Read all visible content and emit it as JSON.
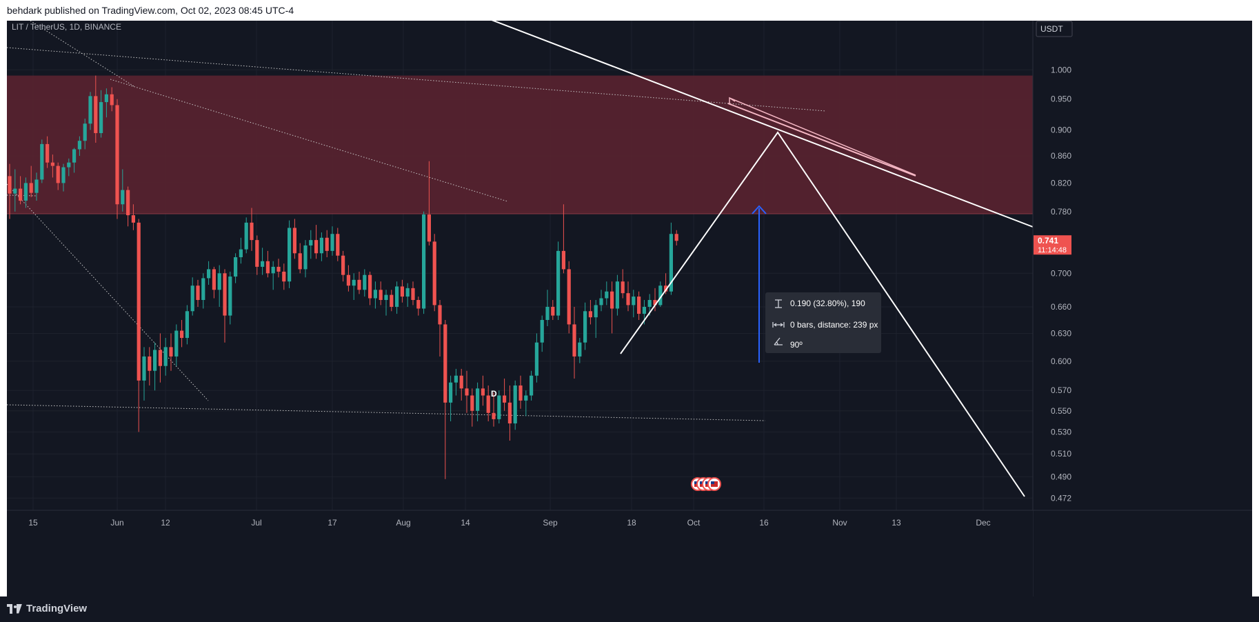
{
  "header": {
    "published_text": "behdark published on TradingView.com, Oct 02, 2023 08:45 UTC-4"
  },
  "footer": {
    "brand": "TradingView",
    "brand_icon": "tradingview-logo-icon"
  },
  "colors": {
    "background": "#131722",
    "bull": "#26a69a",
    "bear": "#ef5350",
    "zone": "#5b2330",
    "price_tag": "#ef5350",
    "arrow": "#2962ff",
    "text": "#b2b5be"
  },
  "chart_data": {
    "type": "candlestick",
    "title": "LIT / TetherUS, 1D, BINANCE",
    "currency_label": "USDT",
    "y_scale": "log",
    "ylim": [
      0.462,
      1.09
    ],
    "y_ticks": [
      "1.000",
      "0.950",
      "0.900",
      "0.860",
      "0.820",
      "0.780",
      "0.700",
      "0.660",
      "0.630",
      "0.600",
      "0.570",
      "0.550",
      "0.530",
      "0.510",
      "0.490",
      "0.472"
    ],
    "x_ticks": [
      "15",
      "Jun",
      "12",
      "Jul",
      "17",
      "Aug",
      "14",
      "Sep",
      "18",
      "Oct",
      "16",
      "Nov",
      "13",
      "Dec"
    ],
    "current_price": "0.741",
    "countdown": "11:14:48",
    "resistance_zone": [
      0.777,
      0.99
    ],
    "candles": [
      [
        0.83,
        0.848,
        0.77,
        0.805
      ],
      [
        0.805,
        0.84,
        0.78,
        0.812
      ],
      [
        0.812,
        0.83,
        0.79,
        0.795
      ],
      [
        0.795,
        0.828,
        0.785,
        0.82
      ],
      [
        0.82,
        0.845,
        0.8,
        0.806
      ],
      [
        0.806,
        0.835,
        0.795,
        0.825
      ],
      [
        0.825,
        0.885,
        0.82,
        0.878
      ],
      [
        0.878,
        0.89,
        0.842,
        0.85
      ],
      [
        0.85,
        0.862,
        0.828,
        0.845
      ],
      [
        0.845,
        0.85,
        0.81,
        0.82
      ],
      [
        0.82,
        0.848,
        0.808,
        0.843
      ],
      [
        0.843,
        0.856,
        0.83,
        0.85
      ],
      [
        0.85,
        0.872,
        0.835,
        0.87
      ],
      [
        0.87,
        0.89,
        0.86,
        0.883
      ],
      [
        0.883,
        0.918,
        0.87,
        0.91
      ],
      [
        0.91,
        0.962,
        0.9,
        0.955
      ],
      [
        0.955,
        0.99,
        0.88,
        0.895
      ],
      [
        0.895,
        0.965,
        0.888,
        0.945
      ],
      [
        0.945,
        0.968,
        0.92,
        0.958
      ],
      [
        0.958,
        0.97,
        0.93,
        0.94
      ],
      [
        0.94,
        0.95,
        0.77,
        0.79
      ],
      [
        0.79,
        0.84,
        0.78,
        0.81
      ],
      [
        0.81,
        0.815,
        0.76,
        0.775
      ],
      [
        0.775,
        0.79,
        0.755,
        0.765
      ],
      [
        0.765,
        0.77,
        0.53,
        0.58
      ],
      [
        0.58,
        0.615,
        0.56,
        0.605
      ],
      [
        0.605,
        0.615,
        0.575,
        0.59
      ],
      [
        0.59,
        0.62,
        0.57,
        0.612
      ],
      [
        0.612,
        0.63,
        0.578,
        0.595
      ],
      [
        0.595,
        0.625,
        0.585,
        0.615
      ],
      [
        0.615,
        0.63,
        0.59,
        0.605
      ],
      [
        0.605,
        0.64,
        0.595,
        0.633
      ],
      [
        0.633,
        0.645,
        0.615,
        0.625
      ],
      [
        0.625,
        0.662,
        0.618,
        0.655
      ],
      [
        0.655,
        0.695,
        0.65,
        0.685
      ],
      [
        0.685,
        0.692,
        0.66,
        0.668
      ],
      [
        0.668,
        0.7,
        0.658,
        0.694
      ],
      [
        0.694,
        0.715,
        0.686,
        0.705
      ],
      [
        0.705,
        0.708,
        0.67,
        0.68
      ],
      [
        0.68,
        0.71,
        0.66,
        0.7
      ],
      [
        0.7,
        0.705,
        0.62,
        0.65
      ],
      [
        0.65,
        0.702,
        0.64,
        0.696
      ],
      [
        0.696,
        0.725,
        0.688,
        0.72
      ],
      [
        0.72,
        0.745,
        0.712,
        0.73
      ],
      [
        0.73,
        0.772,
        0.725,
        0.765
      ],
      [
        0.765,
        0.785,
        0.728,
        0.742
      ],
      [
        0.742,
        0.748,
        0.698,
        0.708
      ],
      [
        0.708,
        0.732,
        0.698,
        0.715
      ],
      [
        0.715,
        0.728,
        0.695,
        0.7
      ],
      [
        0.7,
        0.715,
        0.68,
        0.708
      ],
      [
        0.708,
        0.718,
        0.695,
        0.702
      ],
      [
        0.702,
        0.712,
        0.68,
        0.69
      ],
      [
        0.69,
        0.768,
        0.682,
        0.758
      ],
      [
        0.758,
        0.77,
        0.718,
        0.725
      ],
      [
        0.725,
        0.738,
        0.7,
        0.705
      ],
      [
        0.705,
        0.742,
        0.695,
        0.735
      ],
      [
        0.735,
        0.755,
        0.718,
        0.742
      ],
      [
        0.742,
        0.762,
        0.718,
        0.725
      ],
      [
        0.725,
        0.752,
        0.715,
        0.745
      ],
      [
        0.745,
        0.755,
        0.72,
        0.728
      ],
      [
        0.728,
        0.76,
        0.722,
        0.75
      ],
      [
        0.75,
        0.758,
        0.715,
        0.722
      ],
      [
        0.722,
        0.728,
        0.69,
        0.698
      ],
      [
        0.698,
        0.71,
        0.678,
        0.685
      ],
      [
        0.685,
        0.7,
        0.668,
        0.692
      ],
      [
        0.692,
        0.702,
        0.675,
        0.68
      ],
      [
        0.68,
        0.705,
        0.672,
        0.698
      ],
      [
        0.698,
        0.702,
        0.662,
        0.67
      ],
      [
        0.67,
        0.69,
        0.658,
        0.68
      ],
      [
        0.68,
        0.69,
        0.662,
        0.668
      ],
      [
        0.668,
        0.68,
        0.65,
        0.674
      ],
      [
        0.674,
        0.68,
        0.655,
        0.66
      ],
      [
        0.66,
        0.69,
        0.652,
        0.684
      ],
      [
        0.684,
        0.692,
        0.665,
        0.672
      ],
      [
        0.672,
        0.688,
        0.66,
        0.682
      ],
      [
        0.682,
        0.69,
        0.662,
        0.668
      ],
      [
        0.668,
        0.672,
        0.65,
        0.658
      ],
      [
        0.658,
        0.78,
        0.652,
        0.776
      ],
      [
        0.776,
        0.852,
        0.735,
        0.74
      ],
      [
        0.74,
        0.75,
        0.655,
        0.662
      ],
      [
        0.662,
        0.668,
        0.605,
        0.64
      ],
      [
        0.64,
        0.645,
        0.488,
        0.558
      ],
      [
        0.558,
        0.585,
        0.54,
        0.578
      ],
      [
        0.578,
        0.592,
        0.565,
        0.585
      ],
      [
        0.585,
        0.592,
        0.56,
        0.572
      ],
      [
        0.572,
        0.59,
        0.548,
        0.565
      ],
      [
        0.565,
        0.572,
        0.535,
        0.55
      ],
      [
        0.55,
        0.578,
        0.54,
        0.572
      ],
      [
        0.572,
        0.585,
        0.555,
        0.565
      ],
      [
        0.565,
        0.575,
        0.54,
        0.548
      ],
      [
        0.548,
        0.568,
        0.535,
        0.542
      ],
      [
        0.542,
        0.57,
        0.538,
        0.565
      ],
      [
        0.565,
        0.582,
        0.55,
        0.558
      ],
      [
        0.558,
        0.575,
        0.522,
        0.538
      ],
      [
        0.538,
        0.58,
        0.532,
        0.575
      ],
      [
        0.575,
        0.585,
        0.552,
        0.56
      ],
      [
        0.56,
        0.57,
        0.545,
        0.565
      ],
      [
        0.565,
        0.59,
        0.56,
        0.585
      ],
      [
        0.585,
        0.63,
        0.578,
        0.62
      ],
      [
        0.62,
        0.65,
        0.61,
        0.645
      ],
      [
        0.645,
        0.68,
        0.638,
        0.66
      ],
      [
        0.66,
        0.668,
        0.645,
        0.65
      ],
      [
        0.65,
        0.74,
        0.645,
        0.728
      ],
      [
        0.728,
        0.79,
        0.7,
        0.705
      ],
      [
        0.705,
        0.715,
        0.63,
        0.64
      ],
      [
        0.64,
        0.66,
        0.582,
        0.605
      ],
      [
        0.605,
        0.625,
        0.598,
        0.62
      ],
      [
        0.62,
        0.665,
        0.612,
        0.655
      ],
      [
        0.655,
        0.668,
        0.64,
        0.648
      ],
      [
        0.648,
        0.668,
        0.625,
        0.662
      ],
      [
        0.662,
        0.68,
        0.655,
        0.67
      ],
      [
        0.67,
        0.69,
        0.662,
        0.678
      ],
      [
        0.678,
        0.69,
        0.63,
        0.658
      ],
      [
        0.658,
        0.698,
        0.65,
        0.69
      ],
      [
        0.69,
        0.705,
        0.67,
        0.676
      ],
      [
        0.676,
        0.69,
        0.655,
        0.662
      ],
      [
        0.662,
        0.68,
        0.648,
        0.672
      ],
      [
        0.672,
        0.678,
        0.645,
        0.652
      ],
      [
        0.652,
        0.668,
        0.64,
        0.66
      ],
      [
        0.66,
        0.675,
        0.65,
        0.668
      ],
      [
        0.668,
        0.682,
        0.655,
        0.662
      ],
      [
        0.662,
        0.69,
        0.66,
        0.685
      ],
      [
        0.685,
        0.7,
        0.675,
        0.678
      ],
      [
        0.678,
        0.765,
        0.674,
        0.75
      ],
      [
        0.75,
        0.755,
        0.735,
        0.741
      ]
    ],
    "annotations": {
      "label_d": "D",
      "measure_price": "0.190 (32.80%), 190",
      "measure_bars": "0 bars, distance: 239 px",
      "measure_angle": "90º",
      "event_icons": [
        "us-flag-icon",
        "us-flag-icon",
        "us-flag-icon",
        "us-flag-icon"
      ]
    }
  }
}
